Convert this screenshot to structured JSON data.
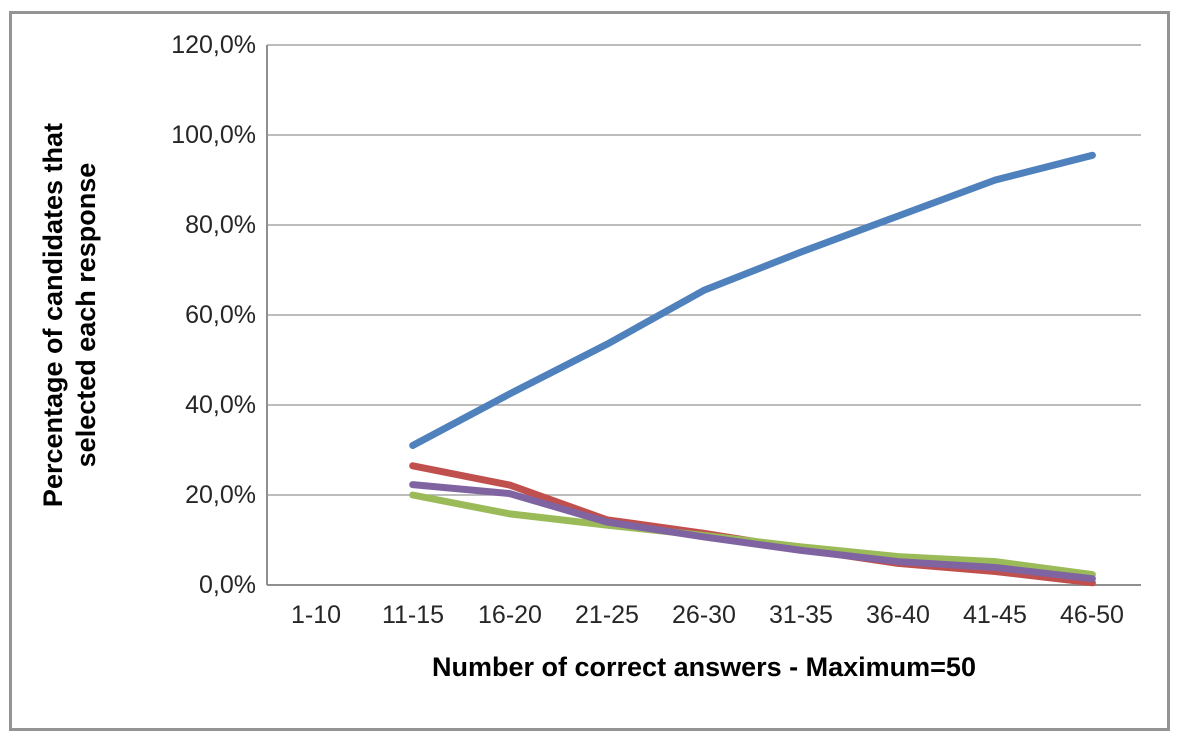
{
  "chart_data": {
    "type": "line",
    "title": "",
    "xlabel": "Number of correct answers - Maximum=50",
    "ylabel": "Percentage of candidates that selected each response",
    "ylabel_lines": [
      "Percentage of candidates that",
      "selected each response"
    ],
    "categories": [
      "1-10",
      "11-15",
      "16-20",
      "21-25",
      "26-30",
      "31-35",
      "36-40",
      "41-45",
      "46-50"
    ],
    "y_ticks": [
      "0,0%",
      "20,0%",
      "40,0%",
      "60,0%",
      "80,0%",
      "100,0%",
      "120,0%"
    ],
    "ylim": [
      0,
      120
    ],
    "grid": "horizontal-only",
    "legend": "none",
    "decimal_separator": "comma",
    "series": [
      {
        "name": "blue-rising-series",
        "color": "#4F81BD",
        "values": [
          null,
          31.0,
          42.5,
          53.5,
          65.5,
          74.0,
          82.0,
          90.0,
          95.5
        ]
      },
      {
        "name": "red-falling-series",
        "color": "#C0504D",
        "values": [
          null,
          26.5,
          22.2,
          14.5,
          11.5,
          8.0,
          4.8,
          3.0,
          0.5
        ]
      },
      {
        "name": "green-falling-series",
        "color": "#9BBB59",
        "values": [
          null,
          20.0,
          15.8,
          13.3,
          11.0,
          8.5,
          6.3,
          5.2,
          2.3
        ]
      },
      {
        "name": "purple-falling-series",
        "color": "#8064A2",
        "values": [
          null,
          22.3,
          20.3,
          14.0,
          10.7,
          7.7,
          5.2,
          3.9,
          1.4
        ]
      }
    ],
    "colors": {
      "gridline": "#a6a6a6",
      "axis_line": "#8f8f8f",
      "tick_text": "#262626",
      "title_text": "#000000",
      "frame_border": "#949494"
    }
  }
}
